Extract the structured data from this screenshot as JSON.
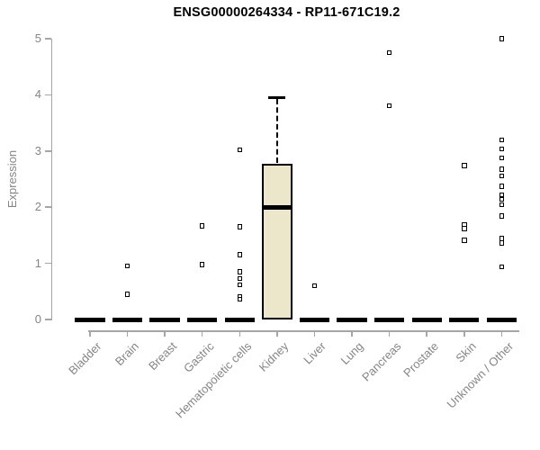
{
  "title": "ENSG00000264334 - RP11-671C19.2",
  "chart_data": {
    "type": "boxplot",
    "title": "ENSG00000264334 - RP11-671C19.2",
    "xlabel": "",
    "ylabel": "Expression",
    "ylim": [
      0,
      5
    ],
    "yticks": [
      0,
      1,
      2,
      3,
      4,
      5
    ],
    "grid": false,
    "legend": "none",
    "categories": [
      "Bladder",
      "Brain",
      "Breast",
      "Gastric",
      "Hematopoietic cells",
      "Kidney",
      "Liver",
      "Lung",
      "Pancreas",
      "Prostate",
      "Skin",
      "Unknown / Other"
    ],
    "series": [
      {
        "category": "Bladder",
        "q1": 0,
        "median": 0,
        "q3": 0,
        "whisker_low": 0,
        "whisker_high": 0,
        "outliers": []
      },
      {
        "category": "Brain",
        "q1": 0,
        "median": 0,
        "q3": 0,
        "whisker_low": 0,
        "whisker_high": 0,
        "outliers": [
          0.95,
          0.45
        ]
      },
      {
        "category": "Breast",
        "q1": 0,
        "median": 0,
        "q3": 0,
        "whisker_low": 0,
        "whisker_high": 0,
        "outliers": []
      },
      {
        "category": "Gastric",
        "q1": 0,
        "median": 0,
        "q3": 0,
        "whisker_low": 0,
        "whisker_high": 0,
        "outliers": [
          1.67,
          0.98
        ]
      },
      {
        "category": "Hematopoietic cells",
        "q1": 0,
        "median": 0,
        "q3": 0,
        "whisker_low": 0,
        "whisker_high": 0,
        "outliers": [
          3.02,
          1.65,
          1.15,
          0.85,
          0.73,
          0.62,
          0.4,
          0.36
        ]
      },
      {
        "category": "Kidney",
        "q1": 0,
        "median": 2.0,
        "q3": 2.77,
        "whisker_low": 0,
        "whisker_high": 3.95,
        "outliers": []
      },
      {
        "category": "Liver",
        "q1": 0,
        "median": 0,
        "q3": 0,
        "whisker_low": 0,
        "whisker_high": 0,
        "outliers": [
          0.6
        ]
      },
      {
        "category": "Lung",
        "q1": 0,
        "median": 0,
        "q3": 0,
        "whisker_low": 0,
        "whisker_high": 0,
        "outliers": []
      },
      {
        "category": "Pancreas",
        "q1": 0,
        "median": 0,
        "q3": 0,
        "whisker_low": 0,
        "whisker_high": 0,
        "outliers": [
          4.75,
          3.81
        ]
      },
      {
        "category": "Prostate",
        "q1": 0,
        "median": 0,
        "q3": 0,
        "whisker_low": 0,
        "whisker_high": 0,
        "outliers": []
      },
      {
        "category": "Skin",
        "q1": 0,
        "median": 0,
        "q3": 0,
        "whisker_low": 0,
        "whisker_high": 0,
        "outliers": [
          2.74,
          1.68,
          1.62,
          1.41
        ]
      },
      {
        "category": "Unknown / Other",
        "q1": 0,
        "median": 0,
        "q3": 0,
        "whisker_low": 0,
        "whisker_high": 0,
        "outliers": [
          5.0,
          3.2,
          3.04,
          2.88,
          2.68,
          2.56,
          2.37,
          2.22,
          2.14,
          2.04,
          1.84,
          1.44,
          1.36,
          0.94
        ]
      }
    ],
    "colors": {
      "box_fill": "#ece7cb",
      "box_border": "#000000",
      "median": "#000000",
      "marker": "#000000",
      "axis": "#a6a6a6",
      "tick_label": "#858585",
      "title": "#000000",
      "background": "#ffffff"
    }
  }
}
